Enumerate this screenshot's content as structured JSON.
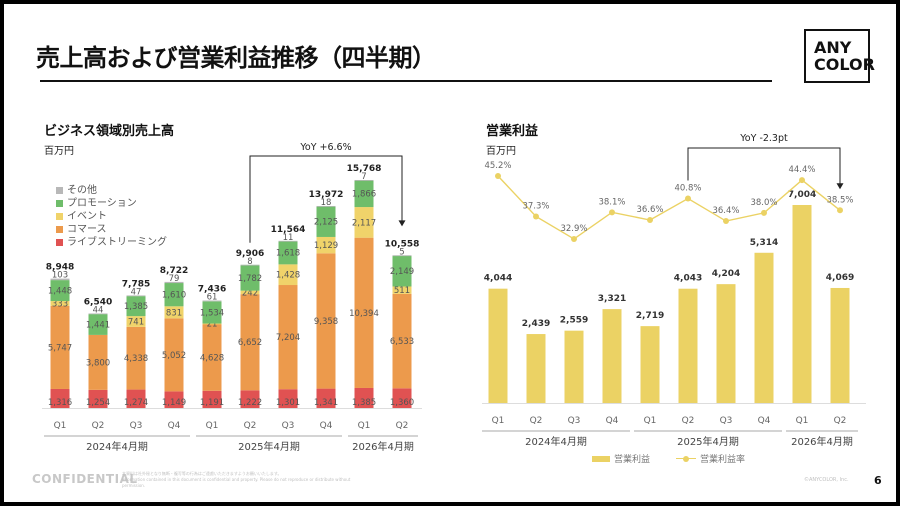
{
  "slide": {
    "title": "売上高および営業利益推移（四半期）",
    "logo_line1": "ANY",
    "logo_line2": "COLOR",
    "footer_confidential": "CONFIDENTIAL",
    "footer_note_jp": "本資料は社外秘となり無断・複写等の行為はご遠慮いただきますようお願いいたします。",
    "footer_note_en": "Information contained in this document is confidential and property. Please do not reproduce or distribute without permission.",
    "copyright": "©ANYCOLOR, Inc.",
    "page_number": "6"
  },
  "chart_data": [
    {
      "type": "bar",
      "stacked": true,
      "title": "ビジネス領域別売上高",
      "unit_label": "百万円",
      "categories": [
        "Q1",
        "Q2",
        "Q3",
        "Q4",
        "Q1",
        "Q2",
        "Q3",
        "Q4",
        "Q1",
        "Q2"
      ],
      "groups": [
        {
          "label": "2024年4月期",
          "start": 0,
          "end": 3
        },
        {
          "label": "2025年4月期",
          "start": 4,
          "end": 7
        },
        {
          "label": "2026年4月期",
          "start": 8,
          "end": 9
        }
      ],
      "series": [
        {
          "name": "ライブストリーミング",
          "color": "#e05252",
          "values": [
            1316,
            1254,
            1274,
            1149,
            1191,
            1222,
            1301,
            1341,
            1385,
            1360
          ]
        },
        {
          "name": "コマース",
          "color": "#ec9a4c",
          "values": [
            5747,
            3800,
            4338,
            5052,
            4628,
            6652,
            7204,
            9358,
            10394,
            6533
          ]
        },
        {
          "name": "イベント",
          "color": "#f0d36a",
          "values": [
            333,
            0,
            741,
            831,
            21,
            242,
            1428,
            1129,
            2117,
            511
          ]
        },
        {
          "name": "プロモーション",
          "color": "#6fbd6a",
          "values": [
            1448,
            1441,
            1385,
            1610,
            1534,
            1782,
            1618,
            2125,
            1866,
            2149
          ]
        },
        {
          "name": "その他",
          "color": "#b8b8b8",
          "values": [
            103,
            44,
            47,
            79,
            61,
            8,
            11,
            18,
            7,
            5
          ]
        }
      ],
      "segment_labels_visible": [
        [
          true,
          true,
          true,
          true,
          true
        ],
        [
          true,
          true,
          false,
          true,
          true
        ],
        [
          true,
          true,
          true,
          true,
          true
        ],
        [
          true,
          true,
          true,
          true,
          true
        ],
        [
          true,
          true,
          true,
          true,
          true
        ],
        [
          true,
          true,
          true,
          true,
          true
        ],
        [
          true,
          true,
          true,
          true,
          true
        ],
        [
          true,
          true,
          true,
          true,
          true
        ],
        [
          true,
          true,
          true,
          true,
          true
        ],
        [
          true,
          true,
          true,
          true,
          true
        ]
      ],
      "totals": [
        8948,
        6540,
        7785,
        8722,
        7436,
        9906,
        11564,
        13972,
        15768,
        10558
      ],
      "legend_order": [
        "その他",
        "プロモーション",
        "イベント",
        "コマース",
        "ライブストリーミング"
      ],
      "legend_position": "left",
      "annotation": {
        "text": "YoY +6.6%",
        "from_index": 5,
        "to_index": 9
      },
      "ylim": [
        0,
        16000
      ],
      "grid": false
    },
    {
      "type": "bar+line",
      "title": "営業利益",
      "unit_label": "百万円",
      "categories": [
        "Q1",
        "Q2",
        "Q3",
        "Q4",
        "Q1",
        "Q2",
        "Q3",
        "Q4",
        "Q1",
        "Q2"
      ],
      "groups": [
        {
          "label": "2024年4月期",
          "start": 0,
          "end": 3
        },
        {
          "label": "2025年4月期",
          "start": 4,
          "end": 7
        },
        {
          "label": "2026年4月期",
          "start": 8,
          "end": 9
        }
      ],
      "series": [
        {
          "name": "営業利益",
          "type": "bar",
          "color": "#ebd264",
          "values": [
            4044,
            2439,
            2559,
            3321,
            2719,
            4043,
            4204,
            5314,
            7004,
            4069
          ]
        },
        {
          "name": "営業利益率",
          "type": "line",
          "color": "#ebd264",
          "unit": "%",
          "values": [
            45.2,
            37.3,
            32.9,
            38.1,
            36.6,
            40.8,
            36.4,
            38.0,
            44.4,
            38.5
          ]
        }
      ],
      "legend": [
        "営業利益",
        "営業利益率"
      ],
      "legend_position": "bottom",
      "annotation": {
        "text": "YoY -2.3pt",
        "from_index": 5,
        "to_index": 9
      },
      "ylim": [
        0,
        7500
      ],
      "grid": false
    }
  ]
}
